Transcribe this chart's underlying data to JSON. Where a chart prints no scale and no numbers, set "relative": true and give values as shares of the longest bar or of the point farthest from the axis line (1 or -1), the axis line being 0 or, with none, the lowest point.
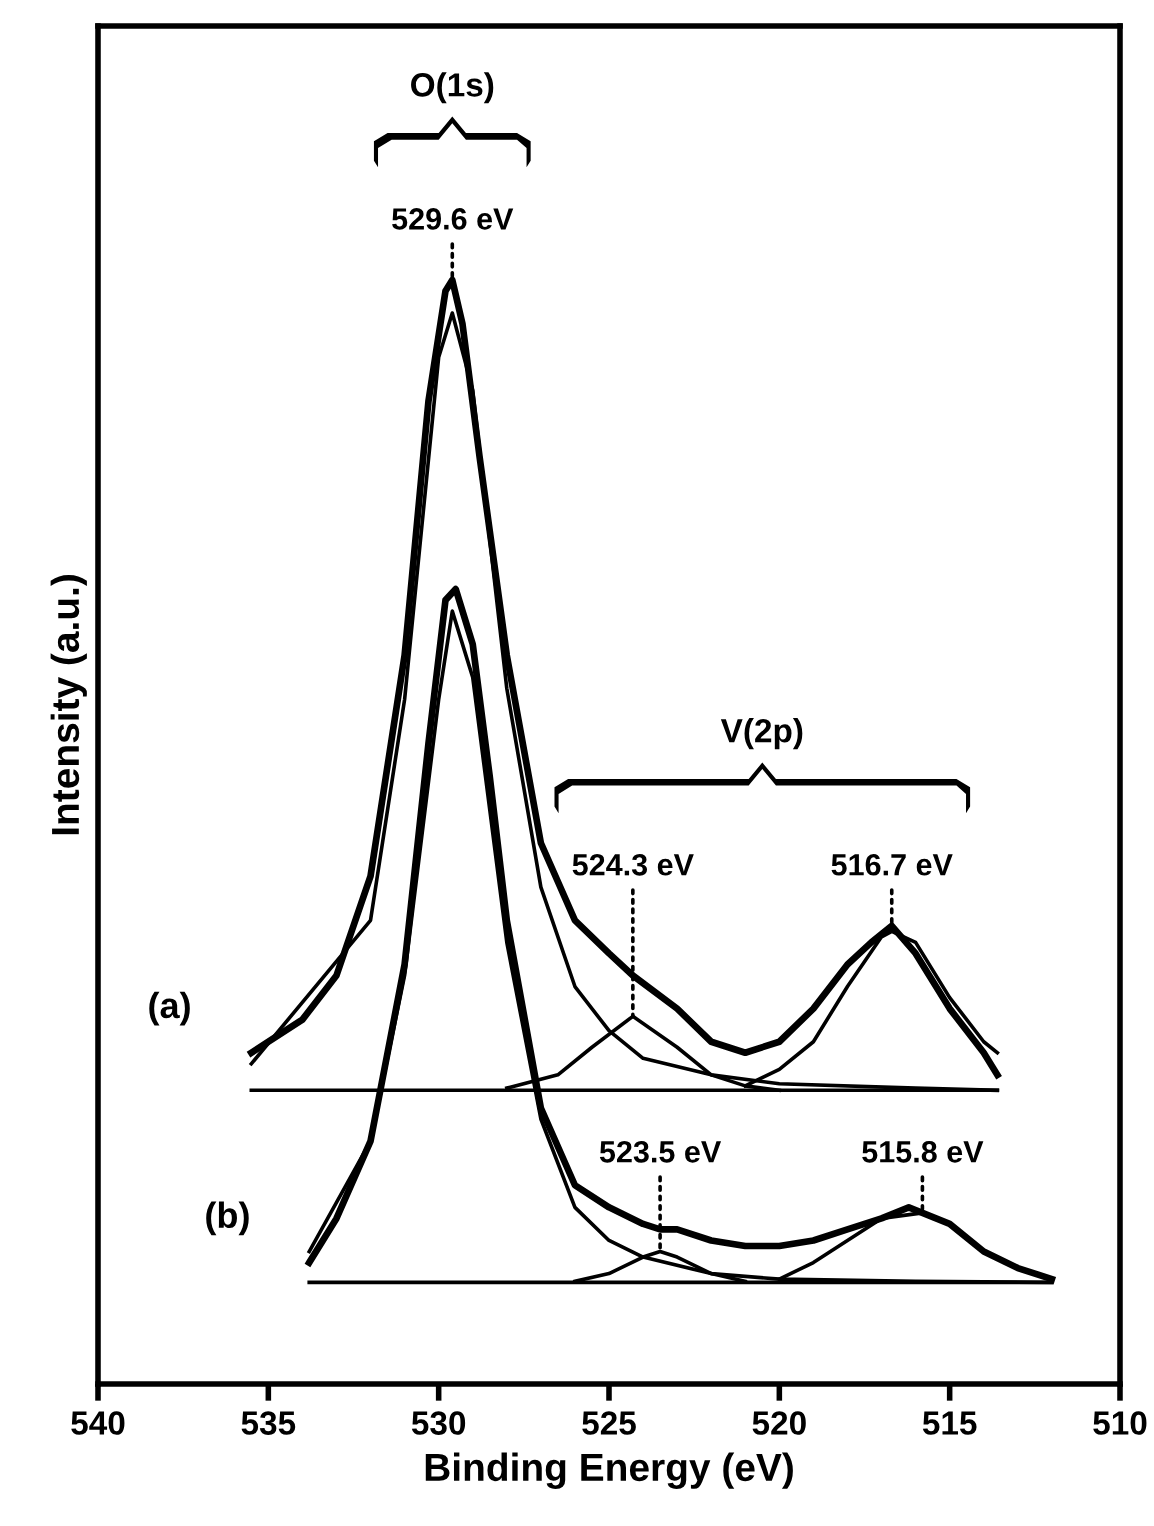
{
  "chart_data": {
    "type": "line",
    "relative": true,
    "xlabel": "Binding Energy (eV)",
    "ylabel": "Intensity (a.u.)",
    "xlim": [
      540,
      510
    ],
    "xticks": [
      540,
      535,
      530,
      525,
      520,
      515,
      510
    ],
    "tick_labels": "x",
    "grid": false,
    "legend": false,
    "marker": "none",
    "line_style": "solid",
    "series": [
      {
        "name": "(a)",
        "color": "#000000",
        "x": [
          535.5,
          534,
          533,
          532,
          531,
          530.3,
          529.8,
          529.6,
          529.3,
          528.8,
          528,
          527,
          526,
          525,
          524.3,
          523,
          522,
          521,
          520,
          519,
          518,
          517.3,
          516.7,
          516,
          515,
          514,
          513.6
        ],
        "values": [
          0.3,
          0.33,
          0.37,
          0.46,
          0.66,
          0.89,
          0.99,
          1.0,
          0.96,
          0.84,
          0.66,
          0.49,
          0.42,
          0.39,
          0.37,
          0.34,
          0.31,
          0.3,
          0.31,
          0.34,
          0.38,
          0.4,
          0.415,
          0.39,
          0.34,
          0.3,
          0.28
        ]
      },
      {
        "color": "#000000",
        "x": [
          535.5,
          513.6
        ],
        "values": [
          0.266,
          0.266
        ]
      },
      {
        "color": "#000000",
        "x": [
          535.5,
          532,
          531,
          530,
          529.6,
          529,
          528,
          527,
          526,
          525,
          524,
          522,
          520,
          516,
          513.6
        ],
        "values": [
          0.29,
          0.42,
          0.62,
          0.93,
          0.97,
          0.9,
          0.63,
          0.45,
          0.36,
          0.32,
          0.295,
          0.28,
          0.272,
          0.268,
          0.266
        ]
      },
      {
        "color": "#000000",
        "x": [
          528,
          526.5,
          525.5,
          524.3,
          523,
          522,
          521,
          520
        ],
        "values": [
          0.268,
          0.28,
          0.305,
          0.333,
          0.305,
          0.28,
          0.27,
          0.266
        ]
      },
      {
        "color": "#000000",
        "x": [
          521,
          520,
          519,
          518,
          517,
          516.7,
          516,
          515,
          514,
          513.6
        ],
        "values": [
          0.27,
          0.285,
          0.31,
          0.36,
          0.405,
          0.41,
          0.4,
          0.35,
          0.31,
          0.3
        ]
      },
      {
        "name": "(b)",
        "color": "#000000",
        "x": [
          533.8,
          533,
          532,
          531,
          530.3,
          529.8,
          529.5,
          529,
          528.5,
          528,
          527,
          526,
          525,
          524,
          523.5,
          523,
          522,
          521,
          520,
          519,
          518,
          517,
          516.2,
          515,
          514,
          513,
          512
        ],
        "values": [
          0.11,
          0.15,
          0.22,
          0.38,
          0.58,
          0.71,
          0.72,
          0.67,
          0.55,
          0.42,
          0.25,
          0.18,
          0.16,
          0.145,
          0.14,
          0.14,
          0.13,
          0.125,
          0.125,
          0.13,
          0.14,
          0.15,
          0.16,
          0.145,
          0.12,
          0.105,
          0.095
        ]
      },
      {
        "color": "#000000",
        "x": [
          533.8,
          512
        ],
        "values": [
          0.092,
          0.092
        ]
      },
      {
        "color": "#000000",
        "x": [
          533.8,
          532,
          531,
          530,
          529.6,
          529,
          528,
          527,
          526,
          525,
          524,
          522,
          520,
          516,
          512
        ],
        "values": [
          0.12,
          0.22,
          0.37,
          0.62,
          0.7,
          0.64,
          0.4,
          0.24,
          0.16,
          0.13,
          0.115,
          0.1,
          0.095,
          0.093,
          0.092
        ]
      },
      {
        "color": "#000000",
        "x": [
          526,
          525,
          524,
          523.5,
          523,
          522,
          521
        ],
        "values": [
          0.093,
          0.1,
          0.115,
          0.12,
          0.115,
          0.1,
          0.093
        ]
      },
      {
        "color": "#000000",
        "x": [
          520,
          519,
          518,
          517,
          515.8,
          515,
          514,
          513,
          512
        ],
        "values": [
          0.095,
          0.11,
          0.13,
          0.15,
          0.155,
          0.145,
          0.12,
          0.105,
          0.095
        ]
      }
    ],
    "annotations": [
      "O(1s)",
      {
        "text": "529.6 eV",
        "x": 529.6,
        "y": 1.0
      },
      "V(2p)",
      {
        "text": "524.3 eV",
        "x": 524.3,
        "y": 0.333
      },
      {
        "text": "516.7 eV",
        "x": 516.7,
        "y": 0.415
      },
      {
        "text": "523.5 eV",
        "x": 523.5,
        "y": 0.12
      },
      {
        "text": "515.8 eV",
        "x": 515.8,
        "y": 0.155
      }
    ]
  }
}
